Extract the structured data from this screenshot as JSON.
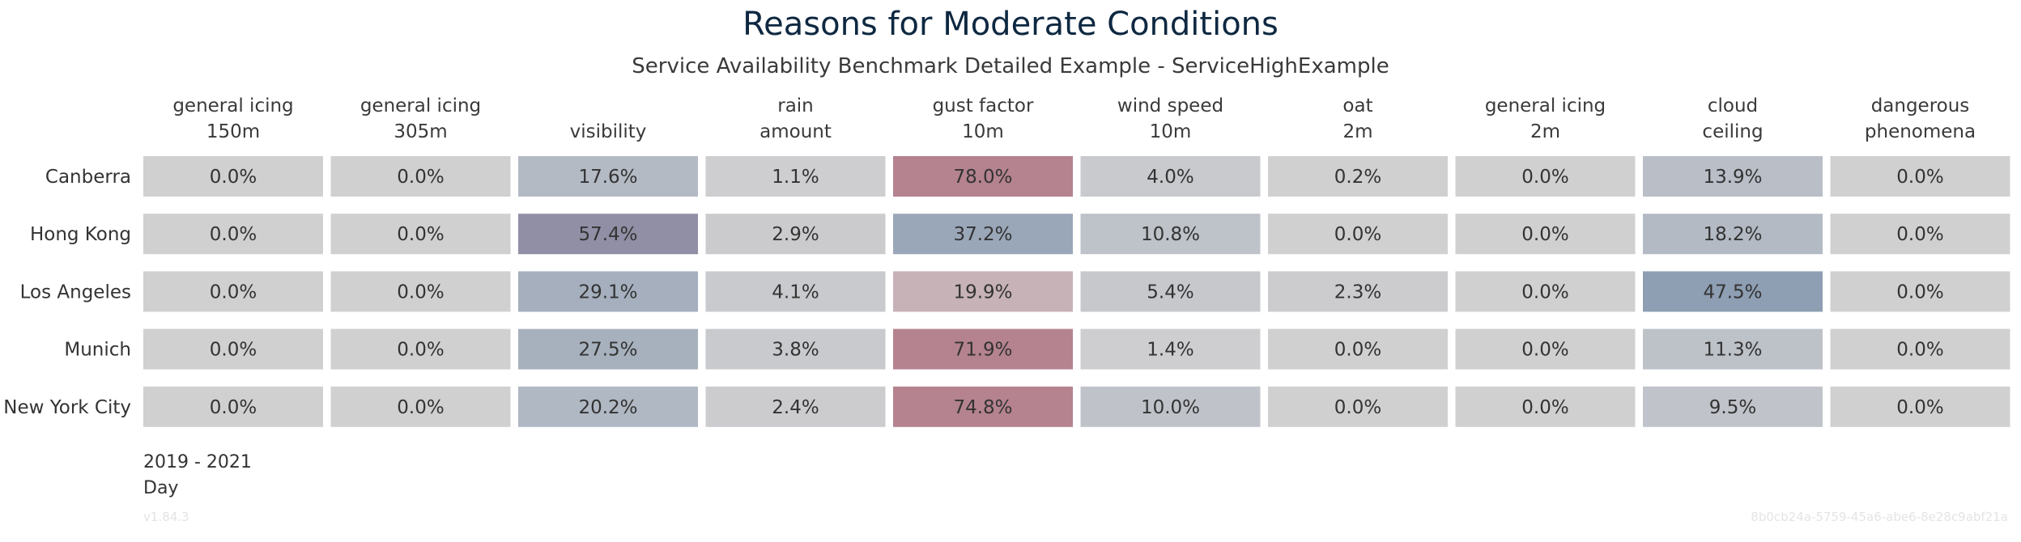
{
  "title": "Reasons for Moderate Conditions",
  "subtitle": "Service Availability Benchmark Detailed Example - ServiceHighExample",
  "footer": {
    "period": "2019 - 2021",
    "scope": "Day"
  },
  "meta": {
    "version": "v1.84.3",
    "id": "8b0cb24a-5759-45a6-abe6-8e28c9abf21a"
  },
  "chart_data": {
    "type": "heatmap",
    "title": "Reasons for Moderate Conditions",
    "subtitle": "Service Availability Benchmark Detailed Example - ServiceHighExample",
    "columns": [
      [
        "general icing",
        "150m"
      ],
      [
        "general icing",
        "305m"
      ],
      [
        "visibility"
      ],
      [
        "rain",
        "amount"
      ],
      [
        "gust factor",
        "10m"
      ],
      [
        "wind speed",
        "10m"
      ],
      [
        "oat",
        "2m"
      ],
      [
        "general icing",
        "2m"
      ],
      [
        "cloud",
        "ceiling"
      ],
      [
        "dangerous",
        "phenomena"
      ]
    ],
    "rows": [
      "Canberra",
      "Hong Kong",
      "Los Angeles",
      "Munich",
      "New York City"
    ],
    "values": [
      [
        0.0,
        0.0,
        17.6,
        1.1,
        78.0,
        4.0,
        0.2,
        0.0,
        13.9,
        0.0
      ],
      [
        0.0,
        0.0,
        57.4,
        2.9,
        37.2,
        10.8,
        0.0,
        0.0,
        18.2,
        0.0
      ],
      [
        0.0,
        0.0,
        29.1,
        4.1,
        19.9,
        5.4,
        2.3,
        0.0,
        47.5,
        0.0
      ],
      [
        0.0,
        0.0,
        27.5,
        3.8,
        71.9,
        1.4,
        0.0,
        0.0,
        11.3,
        0.0
      ],
      [
        0.0,
        0.0,
        20.2,
        2.4,
        74.8,
        10.0,
        0.0,
        0.0,
        9.5,
        0.0
      ]
    ],
    "value_suffix": "%",
    "colors": {
      "base": "#d1d0d1",
      "cool": "#7f93ad",
      "violet": "#8e8ca3",
      "warm": "#b4838f"
    },
    "column_colors": [
      "cool",
      "cool",
      "cool",
      "cool",
      "warm",
      "cool",
      "cool",
      "cool",
      "cool",
      "cool"
    ],
    "cell_overrides": [
      {
        "row": 1,
        "col": 2,
        "color": "violet"
      },
      {
        "row": 1,
        "col": 4,
        "color": "cool"
      }
    ]
  }
}
